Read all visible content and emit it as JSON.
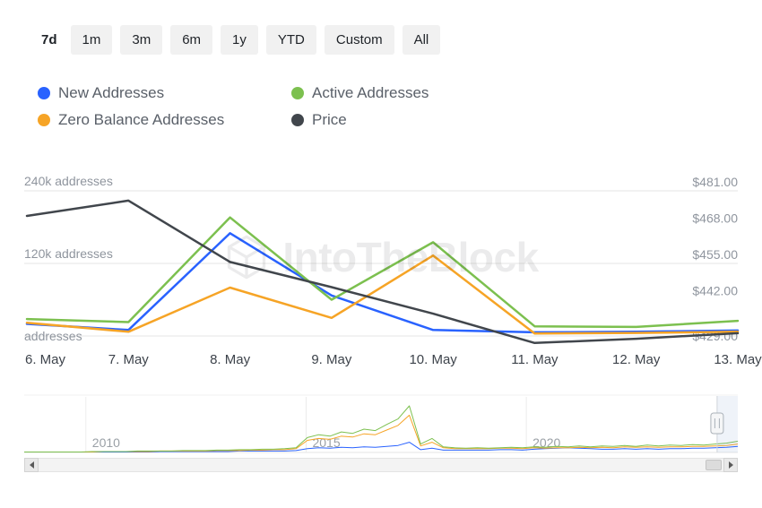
{
  "range_selector": {
    "buttons": [
      {
        "label": "7d",
        "selected": true
      },
      {
        "label": "1m",
        "selected": false
      },
      {
        "label": "3m",
        "selected": false
      },
      {
        "label": "6m",
        "selected": false
      },
      {
        "label": "1y",
        "selected": false
      },
      {
        "label": "YTD",
        "selected": false
      },
      {
        "label": "Custom",
        "selected": false
      },
      {
        "label": "All",
        "selected": false
      }
    ]
  },
  "legend": {
    "items": [
      {
        "label": "New Addresses",
        "color": "#2962ff"
      },
      {
        "label": "Active Addresses",
        "color": "#7cc04f"
      },
      {
        "label": "Zero Balance Addresses",
        "color": "#f6a426"
      },
      {
        "label": "Price",
        "color": "#41464c"
      }
    ]
  },
  "watermark": {
    "text": "IntoTheBlock"
  },
  "icons": {
    "scrollbar_left": "left-arrow-triangle",
    "scrollbar_right": "right-arrow-triangle",
    "watermark_logo": "intotheblock-cube-logo"
  },
  "chart_data": [
    {
      "id": "main",
      "type": "line",
      "title": "",
      "categories": [
        "6. May",
        "7. May",
        "8. May",
        "9. May",
        "10. May",
        "11. May",
        "12. May",
        "13. May"
      ],
      "grid": "horizontal",
      "legend_position": "top-left",
      "left_axis": {
        "title": "addresses",
        "range": [
          0,
          240000
        ],
        "ticks": [
          {
            "value": 240000,
            "label": "240k addresses"
          },
          {
            "value": 120000,
            "label": "120k addresses"
          },
          {
            "value": 0,
            "label": "addresses"
          }
        ]
      },
      "right_axis": {
        "title": "price",
        "range": [
          429,
          481
        ],
        "ticks": [
          {
            "value": 481,
            "label": "$481.00"
          },
          {
            "value": 468,
            "label": "$468.00"
          },
          {
            "value": 455,
            "label": "$455.00"
          },
          {
            "value": 442,
            "label": "$442.00"
          },
          {
            "value": 429,
            "label": "$429.00"
          }
        ]
      },
      "series": [
        {
          "name": "New Addresses",
          "color": "#2962ff",
          "axis": "left",
          "values": [
            20000,
            10000,
            170000,
            67000,
            10000,
            6000,
            7000,
            9000
          ]
        },
        {
          "name": "Zero Balance Addresses",
          "color": "#f6a426",
          "axis": "left",
          "values": [
            22000,
            7000,
            80000,
            30000,
            133000,
            4000,
            5000,
            7000
          ]
        },
        {
          "name": "Active Addresses",
          "color": "#7cc04f",
          "axis": "left",
          "values": [
            28000,
            23000,
            196000,
            60000,
            155000,
            16000,
            15000,
            25000
          ]
        },
        {
          "name": "Price",
          "color": "#41464c",
          "axis": "right",
          "values": [
            472,
            477.5,
            455.5,
            446.5,
            437,
            426.5,
            428,
            430
          ]
        }
      ]
    },
    {
      "id": "navigator",
      "type": "line",
      "x_range": [
        2008.6,
        2024.8
      ],
      "value_range": [
        0,
        100
      ],
      "year_ticks": [
        {
          "value": 2010,
          "label": "2010"
        },
        {
          "value": 2015,
          "label": "2015"
        },
        {
          "value": 2020,
          "label": "2020"
        }
      ],
      "series": [
        {
          "name": "New Addresses",
          "color": "#2962ff",
          "values": [
            1,
            1,
            1,
            1,
            1,
            1,
            1,
            1,
            1,
            1,
            1,
            1,
            2,
            2,
            2,
            2,
            2,
            2,
            2,
            3,
            3,
            3,
            3,
            3,
            4,
            8,
            10,
            9,
            11,
            10,
            12,
            11,
            13,
            15,
            22,
            6,
            9,
            5,
            5,
            5,
            5,
            5,
            6,
            6,
            5,
            7,
            8,
            9,
            10,
            9,
            8,
            7,
            7,
            8,
            7,
            8,
            7,
            8,
            8,
            9,
            9,
            10,
            11,
            13
          ]
        },
        {
          "name": "Zero Balance Addresses",
          "color": "#f6a426",
          "values": [
            1,
            1,
            1,
            1,
            1,
            1,
            1,
            2,
            2,
            2,
            2,
            2,
            3,
            3,
            3,
            3,
            3,
            4,
            4,
            4,
            5,
            5,
            6,
            6,
            8,
            26,
            30,
            28,
            35,
            33,
            40,
            38,
            48,
            58,
            80,
            14,
            22,
            10,
            8,
            8,
            8,
            8,
            9,
            9,
            8,
            10,
            9,
            10,
            10,
            11,
            10,
            11,
            10,
            12,
            11,
            12,
            11,
            12,
            12,
            13,
            13,
            14,
            15,
            18
          ]
        },
        {
          "name": "Active Addresses",
          "color": "#7cc04f",
          "values": [
            1,
            1,
            1,
            1,
            1,
            1,
            2,
            2,
            2,
            2,
            3,
            3,
            3,
            3,
            4,
            4,
            4,
            5,
            5,
            6,
            6,
            7,
            7,
            8,
            10,
            32,
            38,
            35,
            44,
            41,
            50,
            47,
            60,
            72,
            100,
            18,
            30,
            12,
            10,
            9,
            10,
            9,
            10,
            11,
            10,
            12,
            11,
            13,
            12,
            14,
            12,
            14,
            13,
            15,
            13,
            16,
            14,
            16,
            15,
            17,
            16,
            18,
            20,
            24
          ]
        }
      ]
    }
  ],
  "navigator": {
    "handle_position": 0.971
  }
}
